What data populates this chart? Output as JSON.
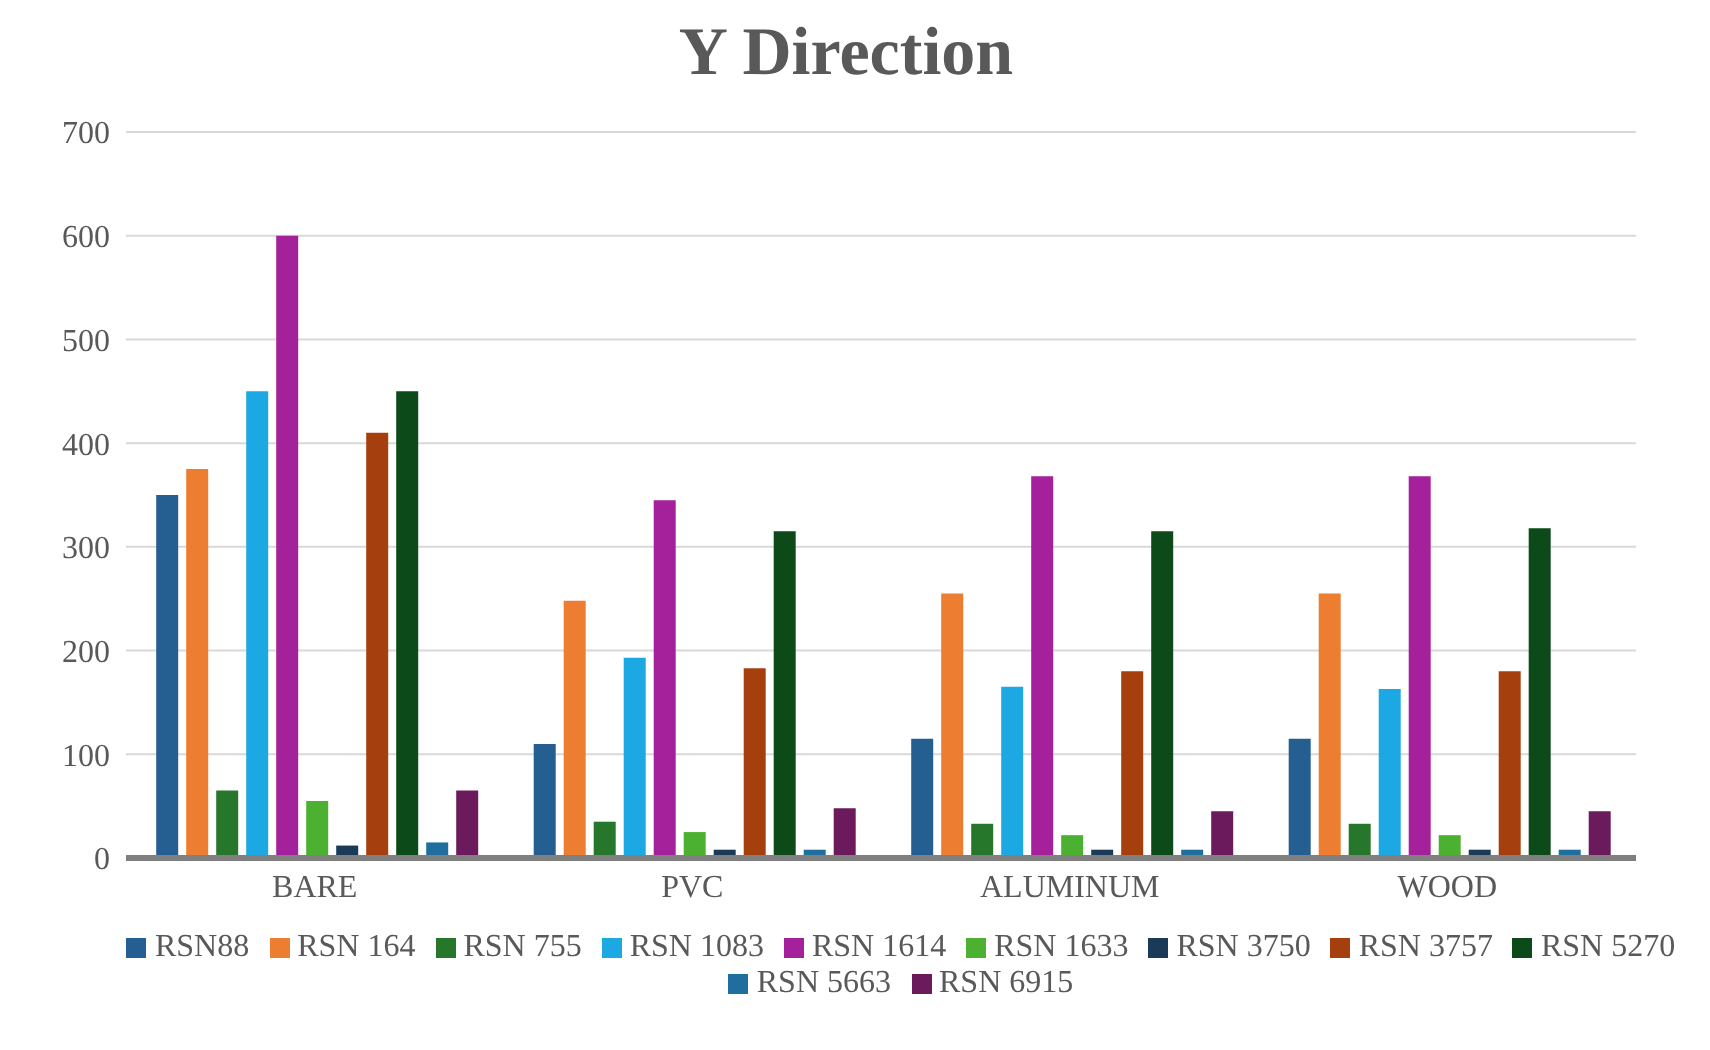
{
  "chart_data": {
    "type": "bar",
    "title": "Y Direction",
    "categories": [
      "BARE",
      "PVC",
      "ALUMINUM",
      "WOOD"
    ],
    "series": [
      {
        "name": "RSN88",
        "color": "#255e91",
        "values": [
          350,
          110,
          115,
          115
        ]
      },
      {
        "name": "RSN 164",
        "color": "#ed7d31",
        "values": [
          375,
          248,
          255,
          255
        ]
      },
      {
        "name": "RSN 755",
        "color": "#26762b",
        "values": [
          65,
          35,
          33,
          33
        ]
      },
      {
        "name": "RSN 1083",
        "color": "#1ca8e3",
        "values": [
          450,
          193,
          165,
          163
        ]
      },
      {
        "name": "RSN 1614",
        "color": "#a5209b",
        "values": [
          600,
          345,
          368,
          368
        ]
      },
      {
        "name": "RSN 1633",
        "color": "#4cb030",
        "values": [
          55,
          25,
          22,
          22
        ]
      },
      {
        "name": "RSN 3750",
        "color": "#1b3a57",
        "values": [
          12,
          8,
          8,
          8
        ]
      },
      {
        "name": "RSN 3757",
        "color": "#a63f0e",
        "values": [
          410,
          183,
          180,
          180
        ]
      },
      {
        "name": "RSN 5270",
        "color": "#0d4a1a",
        "values": [
          450,
          315,
          315,
          318
        ]
      },
      {
        "name": "RSN 5663",
        "color": "#1f6e9e",
        "values": [
          15,
          8,
          8,
          8
        ]
      },
      {
        "name": "RSN 6915",
        "color": "#6b1b5b",
        "values": [
          65,
          48,
          45,
          45
        ]
      }
    ],
    "ylim": [
      0,
      700
    ],
    "yticks": [
      0,
      100,
      200,
      300,
      400,
      500,
      600,
      700
    ],
    "grid": "y",
    "legend": "bottom"
  }
}
